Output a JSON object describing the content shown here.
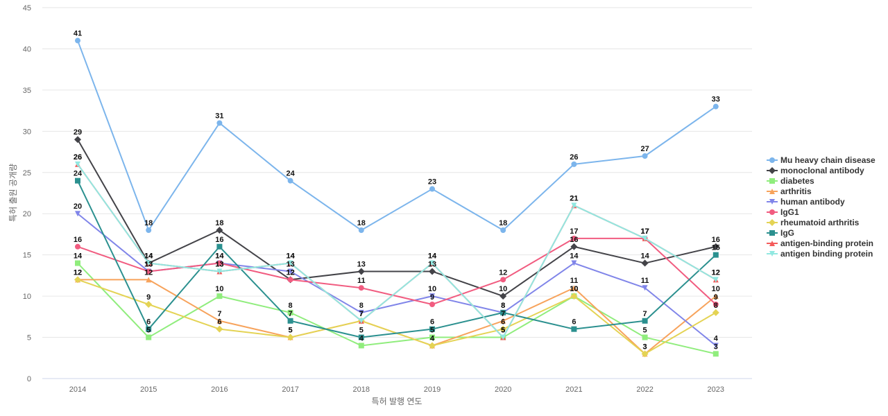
{
  "chart_data": {
    "type": "line",
    "xlabel": "특허 발행 연도",
    "ylabel": "특허 출원 공개량",
    "ylim": [
      0,
      45
    ],
    "yticks": [
      0,
      5,
      10,
      15,
      20,
      25,
      30,
      35,
      40,
      45
    ],
    "grid": true,
    "legend_position": "right",
    "x": [
      "2014",
      "2015",
      "2016",
      "2017",
      "2018",
      "2019",
      "2020",
      "2021",
      "2022",
      "2023"
    ],
    "series": [
      {
        "name": "Mu heavy chain disease",
        "color": "#7cb5ec",
        "marker": "circle",
        "values": [
          41,
          18,
          31,
          24,
          18,
          23,
          18,
          26,
          27,
          33
        ]
      },
      {
        "name": "monoclonal antibody",
        "color": "#434348",
        "marker": "diamond",
        "values": [
          29,
          14,
          18,
          12,
          13,
          13,
          10,
          16,
          14,
          16
        ]
      },
      {
        "name": "diabetes",
        "color": "#90ed7d",
        "marker": "square",
        "values": [
          14,
          5,
          10,
          8,
          4,
          5,
          5,
          10,
          5,
          3
        ]
      },
      {
        "name": "arthritis",
        "color": "#f7a35c",
        "marker": "triangle",
        "values": [
          12,
          12,
          7,
          5,
          7,
          4,
          7,
          11,
          3,
          10
        ]
      },
      {
        "name": "human antibody",
        "color": "#8085e9",
        "marker": "triangle-down",
        "values": [
          20,
          13,
          14,
          13,
          8,
          10,
          8,
          14,
          11,
          4
        ]
      },
      {
        "name": "IgG1",
        "color": "#f15c80",
        "marker": "circle",
        "values": [
          16,
          13,
          14,
          12,
          11,
          9,
          12,
          17,
          17,
          9
        ]
      },
      {
        "name": "rheumatoid arthritis",
        "color": "#e4d354",
        "marker": "diamond",
        "values": [
          12,
          9,
          6,
          5,
          7,
          4,
          6,
          10,
          3,
          8
        ]
      },
      {
        "name": "IgG",
        "color": "#2b908f",
        "marker": "square",
        "values": [
          24,
          6,
          16,
          7,
          5,
          6,
          8,
          6,
          7,
          15
        ]
      },
      {
        "name": "antigen-binding protein",
        "color": "#f45b5b",
        "marker": "triangle",
        "values": [
          26,
          14,
          13,
          14,
          7,
          14,
          5,
          21,
          17,
          12
        ]
      },
      {
        "name": "antigen binding protein",
        "color": "#91e8e1",
        "marker": "triangle-down",
        "values": [
          26,
          14,
          13,
          14,
          7,
          14,
          5,
          21,
          17,
          12
        ]
      }
    ]
  }
}
